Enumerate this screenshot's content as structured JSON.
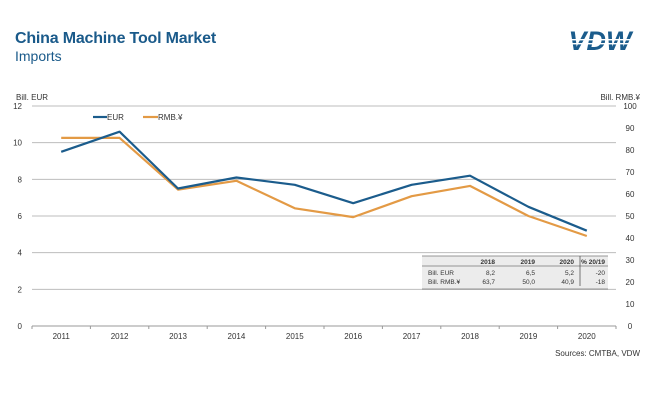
{
  "header": {
    "title": "China Machine Tool Market",
    "subtitle": "Imports",
    "logo_text": "VDW"
  },
  "footer": {
    "source": "Sources: CMTBA, VDW"
  },
  "colors": {
    "eur": "#1b5c8c",
    "rmb": "#e39a45",
    "title": "#1a5a8a",
    "grid": "#bdbdbd"
  },
  "chart_data": {
    "type": "line",
    "title": "China Machine Tool Market",
    "subtitle": "Imports",
    "categories": [
      "2011",
      "2012",
      "2013",
      "2014",
      "2015",
      "2016",
      "2017",
      "2018",
      "2019",
      "2020"
    ],
    "series": [
      {
        "name": "EUR",
        "axis": "left",
        "values": [
          9.5,
          10.6,
          7.5,
          8.1,
          7.7,
          6.7,
          7.7,
          8.2,
          6.5,
          5.2
        ]
      },
      {
        "name": "RMB.¥",
        "axis": "right",
        "values": [
          85.5,
          85.5,
          62.0,
          66.0,
          53.5,
          49.5,
          59.0,
          63.7,
          50.0,
          40.9
        ]
      }
    ],
    "ylabel_left": "Bill. EUR",
    "ylabel_right": "Bill. RMB.¥",
    "ylim_left": [
      0,
      12
    ],
    "ylim_right": [
      0,
      100
    ],
    "yticks_left": [
      "0",
      "2",
      "4",
      "6",
      "8",
      "10",
      "12"
    ],
    "yticks_right": [
      "0",
      "10",
      "20",
      "30",
      "40",
      "50",
      "60",
      "70",
      "80",
      "90",
      "100"
    ],
    "grid": true,
    "legend": {
      "placement": "top-left",
      "entries": [
        "EUR",
        "RMB.¥"
      ]
    },
    "table": {
      "headers": [
        "",
        "2018",
        "2019",
        "2020",
        "% 20/19"
      ],
      "rows": [
        [
          "Bill. EUR",
          "8,2",
          "6,5",
          "5,2",
          "-20"
        ],
        [
          "Bill. RMB.¥",
          "63,7",
          "50,0",
          "40,9",
          "-18"
        ]
      ]
    }
  }
}
